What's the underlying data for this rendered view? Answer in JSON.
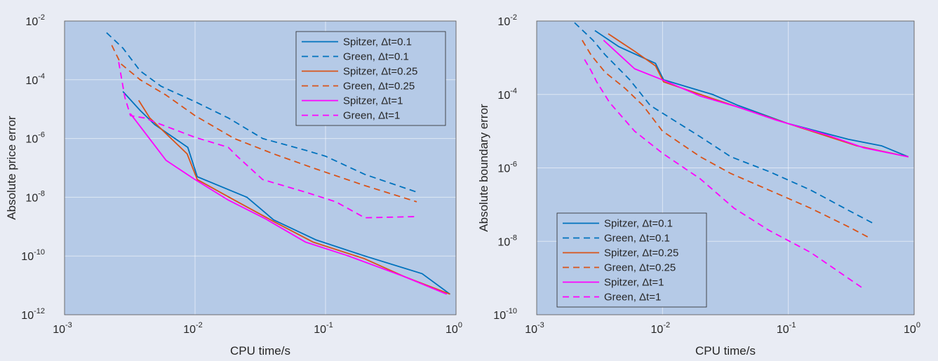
{
  "chart_data": [
    {
      "type": "line",
      "title": "",
      "xlabel": "CPU time/s",
      "ylabel": "Absolute price error",
      "x_scale": "log",
      "y_scale": "log",
      "xlim": [
        0.001,
        1
      ],
      "ylim": [
        1e-12,
        0.01
      ],
      "x_ticks": [
        {
          "base": "10",
          "exp": "-3",
          "value": 0.001
        },
        {
          "base": "10",
          "exp": "-2",
          "value": 0.01
        },
        {
          "base": "10",
          "exp": "-1",
          "value": 0.1
        },
        {
          "base": "10",
          "exp": "0",
          "value": 1
        }
      ],
      "y_ticks": [
        {
          "base": "10",
          "exp": "-12",
          "value": 1e-12
        },
        {
          "base": "10",
          "exp": "-10",
          "value": 1e-10
        },
        {
          "base": "10",
          "exp": "-8",
          "value": 1e-08
        },
        {
          "base": "10",
          "exp": "-6",
          "value": 1e-06
        },
        {
          "base": "10",
          "exp": "-4",
          "value": 0.0001
        },
        {
          "base": "10",
          "exp": "-2",
          "value": 0.01
        }
      ],
      "grid": true,
      "legend_position": "top-right",
      "series": [
        {
          "name": "Spitzer, Δt=0.1",
          "color": "#0072bd",
          "dash": "solid",
          "points": [
            [
              0.0028,
              4e-05
            ],
            [
              0.0038,
              9e-06
            ],
            [
              0.0049,
              3e-06
            ],
            [
              0.0088,
              5e-07
            ],
            [
              0.0104,
              5e-08
            ],
            [
              0.025,
              1e-08
            ],
            [
              0.04,
              1.7e-09
            ],
            [
              0.085,
              3.5e-10
            ],
            [
              0.2,
              1e-10
            ],
            [
              0.55,
              2.5e-11
            ],
            [
              0.9,
              5e-12
            ]
          ]
        },
        {
          "name": "Green, Δt=0.1",
          "color": "#0072bd",
          "dash": "dashed",
          "points": [
            [
              0.0021,
              0.004
            ],
            [
              0.0028,
              0.0012
            ],
            [
              0.0038,
              0.0002
            ],
            [
              0.0055,
              6e-05
            ],
            [
              0.01,
              1.8e-05
            ],
            [
              0.018,
              5e-06
            ],
            [
              0.033,
              1e-06
            ],
            [
              0.07,
              4e-07
            ],
            [
              0.1,
              2.5e-07
            ],
            [
              0.2,
              6e-08
            ],
            [
              0.5,
              1.5e-08
            ]
          ]
        },
        {
          "name": "Spitzer, Δt=0.25",
          "color": "#d95319",
          "dash": "solid",
          "points": [
            [
              0.0037,
              2e-05
            ],
            [
              0.0045,
              5e-06
            ],
            [
              0.0087,
              3e-07
            ],
            [
              0.0104,
              4e-08
            ],
            [
              0.02,
              8e-09
            ],
            [
              0.04,
              1.5e-09
            ],
            [
              0.08,
              3e-10
            ],
            [
              0.2,
              8e-11
            ],
            [
              0.4,
              2e-11
            ],
            [
              0.9,
              5e-12
            ]
          ]
        },
        {
          "name": "Green, Δt=0.25",
          "color": "#d95319",
          "dash": "dashed",
          "points": [
            [
              0.0023,
              0.0015
            ],
            [
              0.0027,
              0.00035
            ],
            [
              0.0038,
              0.0001
            ],
            [
              0.006,
              3e-05
            ],
            [
              0.01,
              6e-06
            ],
            [
              0.02,
              1e-06
            ],
            [
              0.04,
              3e-07
            ],
            [
              0.08,
              1e-07
            ],
            [
              0.2,
              2.5e-08
            ],
            [
              0.5,
              7e-09
            ]
          ]
        },
        {
          "name": "Spitzer, Δt=1",
          "color": "#ff00ff",
          "dash": "solid",
          "points": [
            [
              0.0032,
              7e-06
            ],
            [
              0.006,
              1.8e-07
            ],
            [
              0.01,
              4e-08
            ],
            [
              0.018,
              8e-09
            ],
            [
              0.035,
              1.8e-09
            ],
            [
              0.07,
              3e-10
            ],
            [
              0.15,
              1e-10
            ],
            [
              0.4,
              2e-11
            ],
            [
              0.85,
              5e-12
            ]
          ]
        },
        {
          "name": "Green, Δt=1",
          "color": "#ff00ff",
          "dash": "dashed",
          "points": [
            [
              0.0026,
              0.0004
            ],
            [
              0.0029,
              2.5e-05
            ],
            [
              0.0032,
              6e-06
            ],
            [
              0.0041,
              5e-06
            ],
            [
              0.0055,
              3e-06
            ],
            [
              0.01,
              1.1e-06
            ],
            [
              0.018,
              5e-07
            ],
            [
              0.021,
              2.5e-07
            ],
            [
              0.033,
              4e-08
            ],
            [
              0.07,
              1.5e-08
            ],
            [
              0.12,
              7e-09
            ],
            [
              0.2,
              2e-09
            ],
            [
              0.5,
              2.2e-09
            ]
          ]
        }
      ]
    },
    {
      "type": "line",
      "title": "",
      "xlabel": "CPU time/s",
      "ylabel": "Absolute boundary error",
      "x_scale": "log",
      "y_scale": "log",
      "xlim": [
        0.001,
        1
      ],
      "ylim": [
        1e-10,
        0.01
      ],
      "x_ticks": [
        {
          "base": "10",
          "exp": "-3",
          "value": 0.001
        },
        {
          "base": "10",
          "exp": "-2",
          "value": 0.01
        },
        {
          "base": "10",
          "exp": "-1",
          "value": 0.1
        },
        {
          "base": "10",
          "exp": "0",
          "value": 1
        }
      ],
      "y_ticks": [
        {
          "base": "10",
          "exp": "-10",
          "value": 1e-10
        },
        {
          "base": "10",
          "exp": "-8",
          "value": 1e-08
        },
        {
          "base": "10",
          "exp": "-6",
          "value": 1e-06
        },
        {
          "base": "10",
          "exp": "-4",
          "value": 0.0001
        },
        {
          "base": "10",
          "exp": "-2",
          "value": 0.01
        }
      ],
      "grid": true,
      "legend_position": "bottom-left",
      "series": [
        {
          "name": "Spitzer, Δt=0.1",
          "color": "#0072bd",
          "dash": "solid",
          "points": [
            [
              0.0029,
              0.0055
            ],
            [
              0.0045,
              0.002
            ],
            [
              0.0088,
              0.0007
            ],
            [
              0.0102,
              0.00025
            ],
            [
              0.025,
              0.0001
            ],
            [
              0.04,
              5e-05
            ],
            [
              0.1,
              1.6e-05
            ],
            [
              0.3,
              6e-06
            ],
            [
              0.55,
              4e-06
            ],
            [
              0.9,
              2e-06
            ]
          ]
        },
        {
          "name": "Green, Δt=0.1",
          "color": "#0072bd",
          "dash": "dashed",
          "points": [
            [
              0.002,
              0.009
            ],
            [
              0.0028,
              0.003
            ],
            [
              0.0035,
              0.0012
            ],
            [
              0.0055,
              0.00025
            ],
            [
              0.008,
              5e-05
            ],
            [
              0.02,
              7e-06
            ],
            [
              0.035,
              2e-06
            ],
            [
              0.07,
              8e-07
            ],
            [
              0.15,
              2.5e-07
            ],
            [
              0.3,
              7e-08
            ],
            [
              0.48,
              3e-08
            ]
          ]
        },
        {
          "name": "Spitzer, Δt=0.25",
          "color": "#d95319",
          "dash": "solid",
          "points": [
            [
              0.0037,
              0.0045
            ],
            [
              0.006,
              0.0015
            ],
            [
              0.0088,
              0.0006
            ],
            [
              0.0102,
              0.00022
            ],
            [
              0.02,
              0.0001
            ],
            [
              0.04,
              4.5e-05
            ],
            [
              0.1,
              1.6e-05
            ],
            [
              0.35,
              4e-06
            ],
            [
              0.9,
              2e-06
            ]
          ]
        },
        {
          "name": "Green, Δt=0.25",
          "color": "#d95319",
          "dash": "dashed",
          "points": [
            [
              0.0023,
              0.003
            ],
            [
              0.0027,
              0.0012
            ],
            [
              0.0035,
              0.0004
            ],
            [
              0.005,
              0.00015
            ],
            [
              0.007,
              5e-05
            ],
            [
              0.01,
              1e-05
            ],
            [
              0.02,
              2e-06
            ],
            [
              0.035,
              7e-07
            ],
            [
              0.07,
              2.5e-07
            ],
            [
              0.15,
              8e-08
            ],
            [
              0.3,
              2.5e-08
            ],
            [
              0.45,
              1.2e-08
            ]
          ]
        },
        {
          "name": "Spitzer, Δt=1",
          "color": "#ff00ff",
          "dash": "solid",
          "points": [
            [
              0.0034,
              0.003
            ],
            [
              0.006,
              0.0005
            ],
            [
              0.01,
              0.00025
            ],
            [
              0.02,
              9e-05
            ],
            [
              0.04,
              4.5e-05
            ],
            [
              0.08,
              2e-05
            ],
            [
              0.2,
              8e-06
            ],
            [
              0.4,
              3.5e-06
            ],
            [
              0.9,
              2e-06
            ]
          ]
        },
        {
          "name": "Green, Δt=1",
          "color": "#ff00ff",
          "dash": "dashed",
          "points": [
            [
              0.0024,
              0.0009
            ],
            [
              0.0027,
              0.00045
            ],
            [
              0.003,
              0.00022
            ],
            [
              0.0038,
              6e-05
            ],
            [
              0.006,
              1e-05
            ],
            [
              0.01,
              2.5e-06
            ],
            [
              0.02,
              5e-07
            ],
            [
              0.037,
              8e-08
            ],
            [
              0.07,
              2e-08
            ],
            [
              0.15,
              5e-09
            ],
            [
              0.4,
              5e-10
            ]
          ]
        }
      ]
    }
  ]
}
